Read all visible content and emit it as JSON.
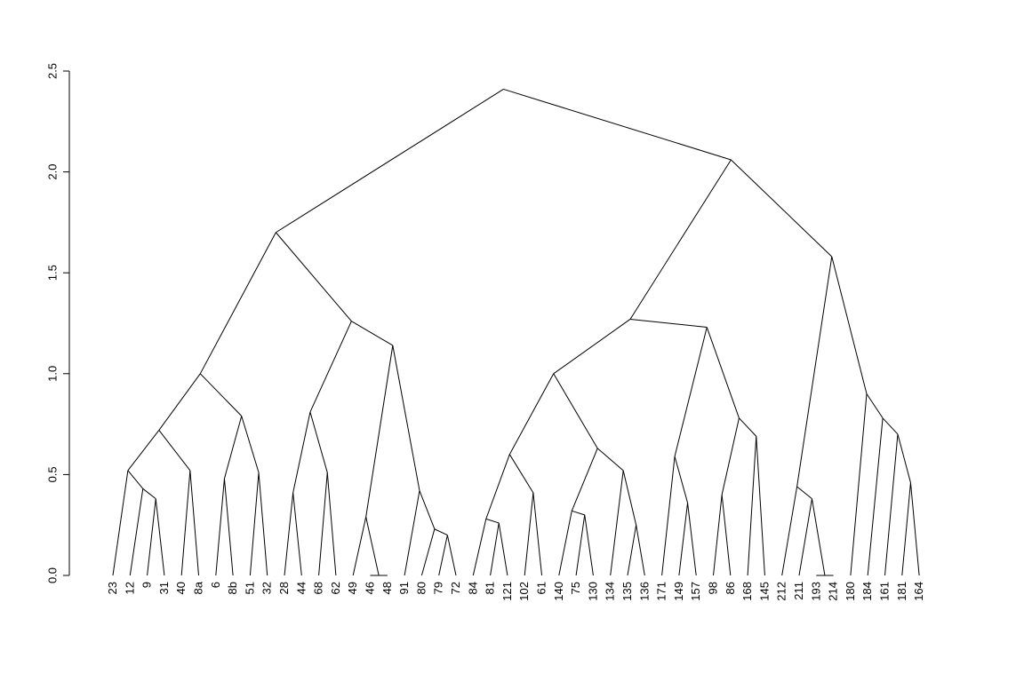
{
  "chart_data": {
    "type": "dendrogram",
    "title": "",
    "xlabel": "",
    "ylabel": "",
    "ylim": [
      0,
      2.5
    ],
    "yticks": [
      "0.0",
      "0.5",
      "1.0",
      "1.5",
      "2.0",
      "2.5"
    ],
    "leaves": [
      "23",
      "12",
      "9",
      "31",
      "40",
      "8a",
      "6",
      "8b",
      "51",
      "32",
      "28",
      "44",
      "68",
      "62",
      "49",
      "46",
      "48",
      "91",
      "80",
      "79",
      "72",
      "84",
      "81",
      "121",
      "102",
      "61",
      "140",
      "75",
      "130",
      "134",
      "135",
      "136",
      "171",
      "149",
      "157",
      "98",
      "86",
      "168",
      "145",
      "212",
      "211",
      "193",
      "214",
      "180",
      "184",
      "161",
      "181",
      "164"
    ],
    "merges": [
      {
        "a": 15,
        "b": 16,
        "height": 0.0
      },
      {
        "a": 41,
        "b": 42,
        "height": 0.0
      },
      {
        "a": 22,
        "b": 23,
        "height": 0.26
      },
      {
        "a": 21,
        "b": "m3",
        "height": 0.28
      },
      {
        "a": 2,
        "b": 3,
        "height": 0.38
      },
      {
        "a": 1,
        "b": "m5",
        "height": 0.43
      },
      {
        "a": 0,
        "b": "m6",
        "height": 0.52
      },
      {
        "a": 4,
        "b": 5,
        "height": 0.52
      },
      {
        "a": "m7",
        "b": "m8",
        "height": 0.72
      },
      {
        "a": 6,
        "b": 7,
        "height": 0.48
      },
      {
        "a": 8,
        "b": 9,
        "height": 0.51
      },
      {
        "a": "m10",
        "b": "m11",
        "height": 0.79
      },
      {
        "a": "m9",
        "b": "m12",
        "height": 1.0
      },
      {
        "a": 10,
        "b": 11,
        "height": 0.41
      },
      {
        "a": 12,
        "b": 13,
        "height": 0.51
      },
      {
        "a": "m14",
        "b": "m15",
        "height": 0.81
      },
      {
        "a": 14,
        "b": "m1",
        "height": 0.29
      },
      {
        "a": 19,
        "b": 20,
        "height": 0.2
      },
      {
        "a": 18,
        "b": "m18",
        "height": 0.23
      },
      {
        "a": 17,
        "b": "m19",
        "height": 0.42
      },
      {
        "a": "m17",
        "b": "m20",
        "height": 1.14
      },
      {
        "a": "m16",
        "b": "m21",
        "height": 1.26
      },
      {
        "a": "m13",
        "b": "m22",
        "height": 1.7
      },
      {
        "a": 24,
        "b": 25,
        "height": 0.41
      },
      {
        "a": "m4",
        "b": "m24",
        "height": 0.6
      },
      {
        "a": 27,
        "b": 28,
        "height": 0.3
      },
      {
        "a": 26,
        "b": "m26",
        "height": 0.32
      },
      {
        "a": 30,
        "b": 31,
        "height": 0.25
      },
      {
        "a": 29,
        "b": "m28",
        "height": 0.52
      },
      {
        "a": "m27",
        "b": "m29",
        "height": 0.63
      },
      {
        "a": "m25",
        "b": "m30",
        "height": 1.0
      },
      {
        "a": 33,
        "b": 34,
        "height": 0.36
      },
      {
        "a": 32,
        "b": "m32",
        "height": 0.59
      },
      {
        "a": 35,
        "b": 36,
        "height": 0.4
      },
      {
        "a": 37,
        "b": 38,
        "height": 0.69
      },
      {
        "a": "m34",
        "b": "m35",
        "height": 0.78
      },
      {
        "a": "m33",
        "b": "m36",
        "height": 1.23
      },
      {
        "a": "m31",
        "b": "m37",
        "height": 1.27
      },
      {
        "a": 40,
        "b": "m2",
        "height": 0.38
      },
      {
        "a": 39,
        "b": "m39",
        "height": 0.44
      },
      {
        "a": 47,
        "b": 46,
        "height": 0.46
      },
      {
        "a": 45,
        "b": "m41",
        "height": 0.7
      },
      {
        "a": 44,
        "b": "m42",
        "height": 0.78
      },
      {
        "a": 43,
        "b": "m43",
        "height": 0.9
      },
      {
        "a": "m40",
        "b": "m44",
        "height": 1.58
      },
      {
        "a": "m38",
        "b": "m45",
        "height": 2.06
      },
      {
        "a": "m23",
        "b": "m46",
        "height": 2.41
      }
    ]
  }
}
